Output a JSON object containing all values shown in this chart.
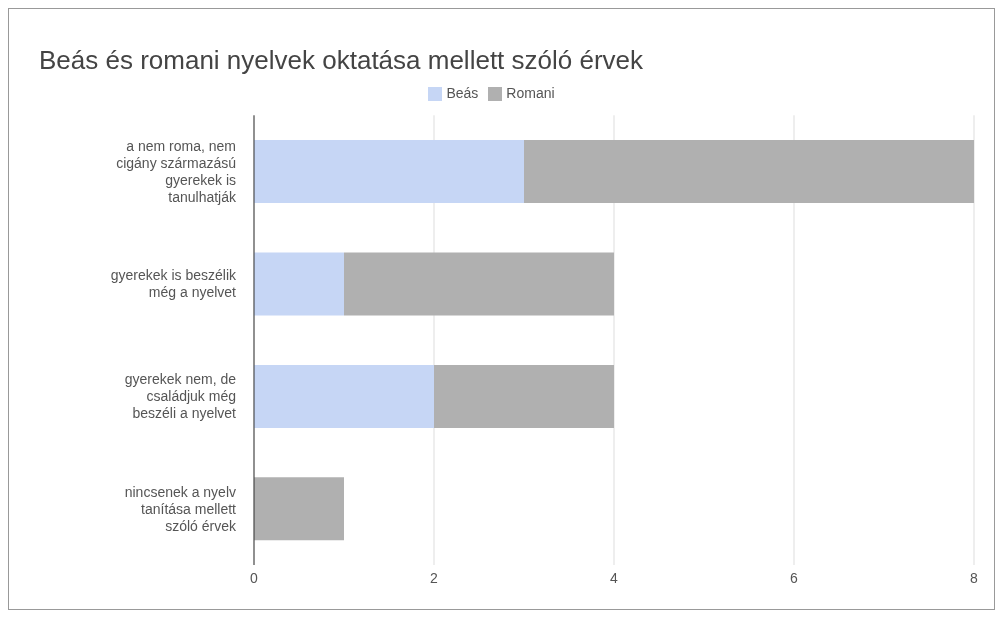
{
  "chart_data": {
    "type": "bar",
    "orientation": "horizontal",
    "stacked": true,
    "title": "Beás és romani nyelvek oktatása mellett szóló érvek",
    "categories": [
      "a nem roma, nem cigány származású gyerekek is tanulhatják",
      "gyerekek is beszélik még a nyelvet",
      "gyerekek nem, de családjuk még beszéli a nyelvet",
      "nincsenek a nyelv tanítása mellett szóló érvek"
    ],
    "series": [
      {
        "name": "Beás",
        "color": "#c6d6f5",
        "values": [
          3,
          1,
          2,
          0
        ]
      },
      {
        "name": "Romani",
        "color": "#b0b0b0",
        "values": [
          5,
          3,
          2,
          1
        ]
      }
    ],
    "xlim": [
      0,
      8
    ],
    "xticks": [
      0,
      2,
      4,
      6,
      8
    ],
    "grid": "x",
    "legend": "top"
  }
}
